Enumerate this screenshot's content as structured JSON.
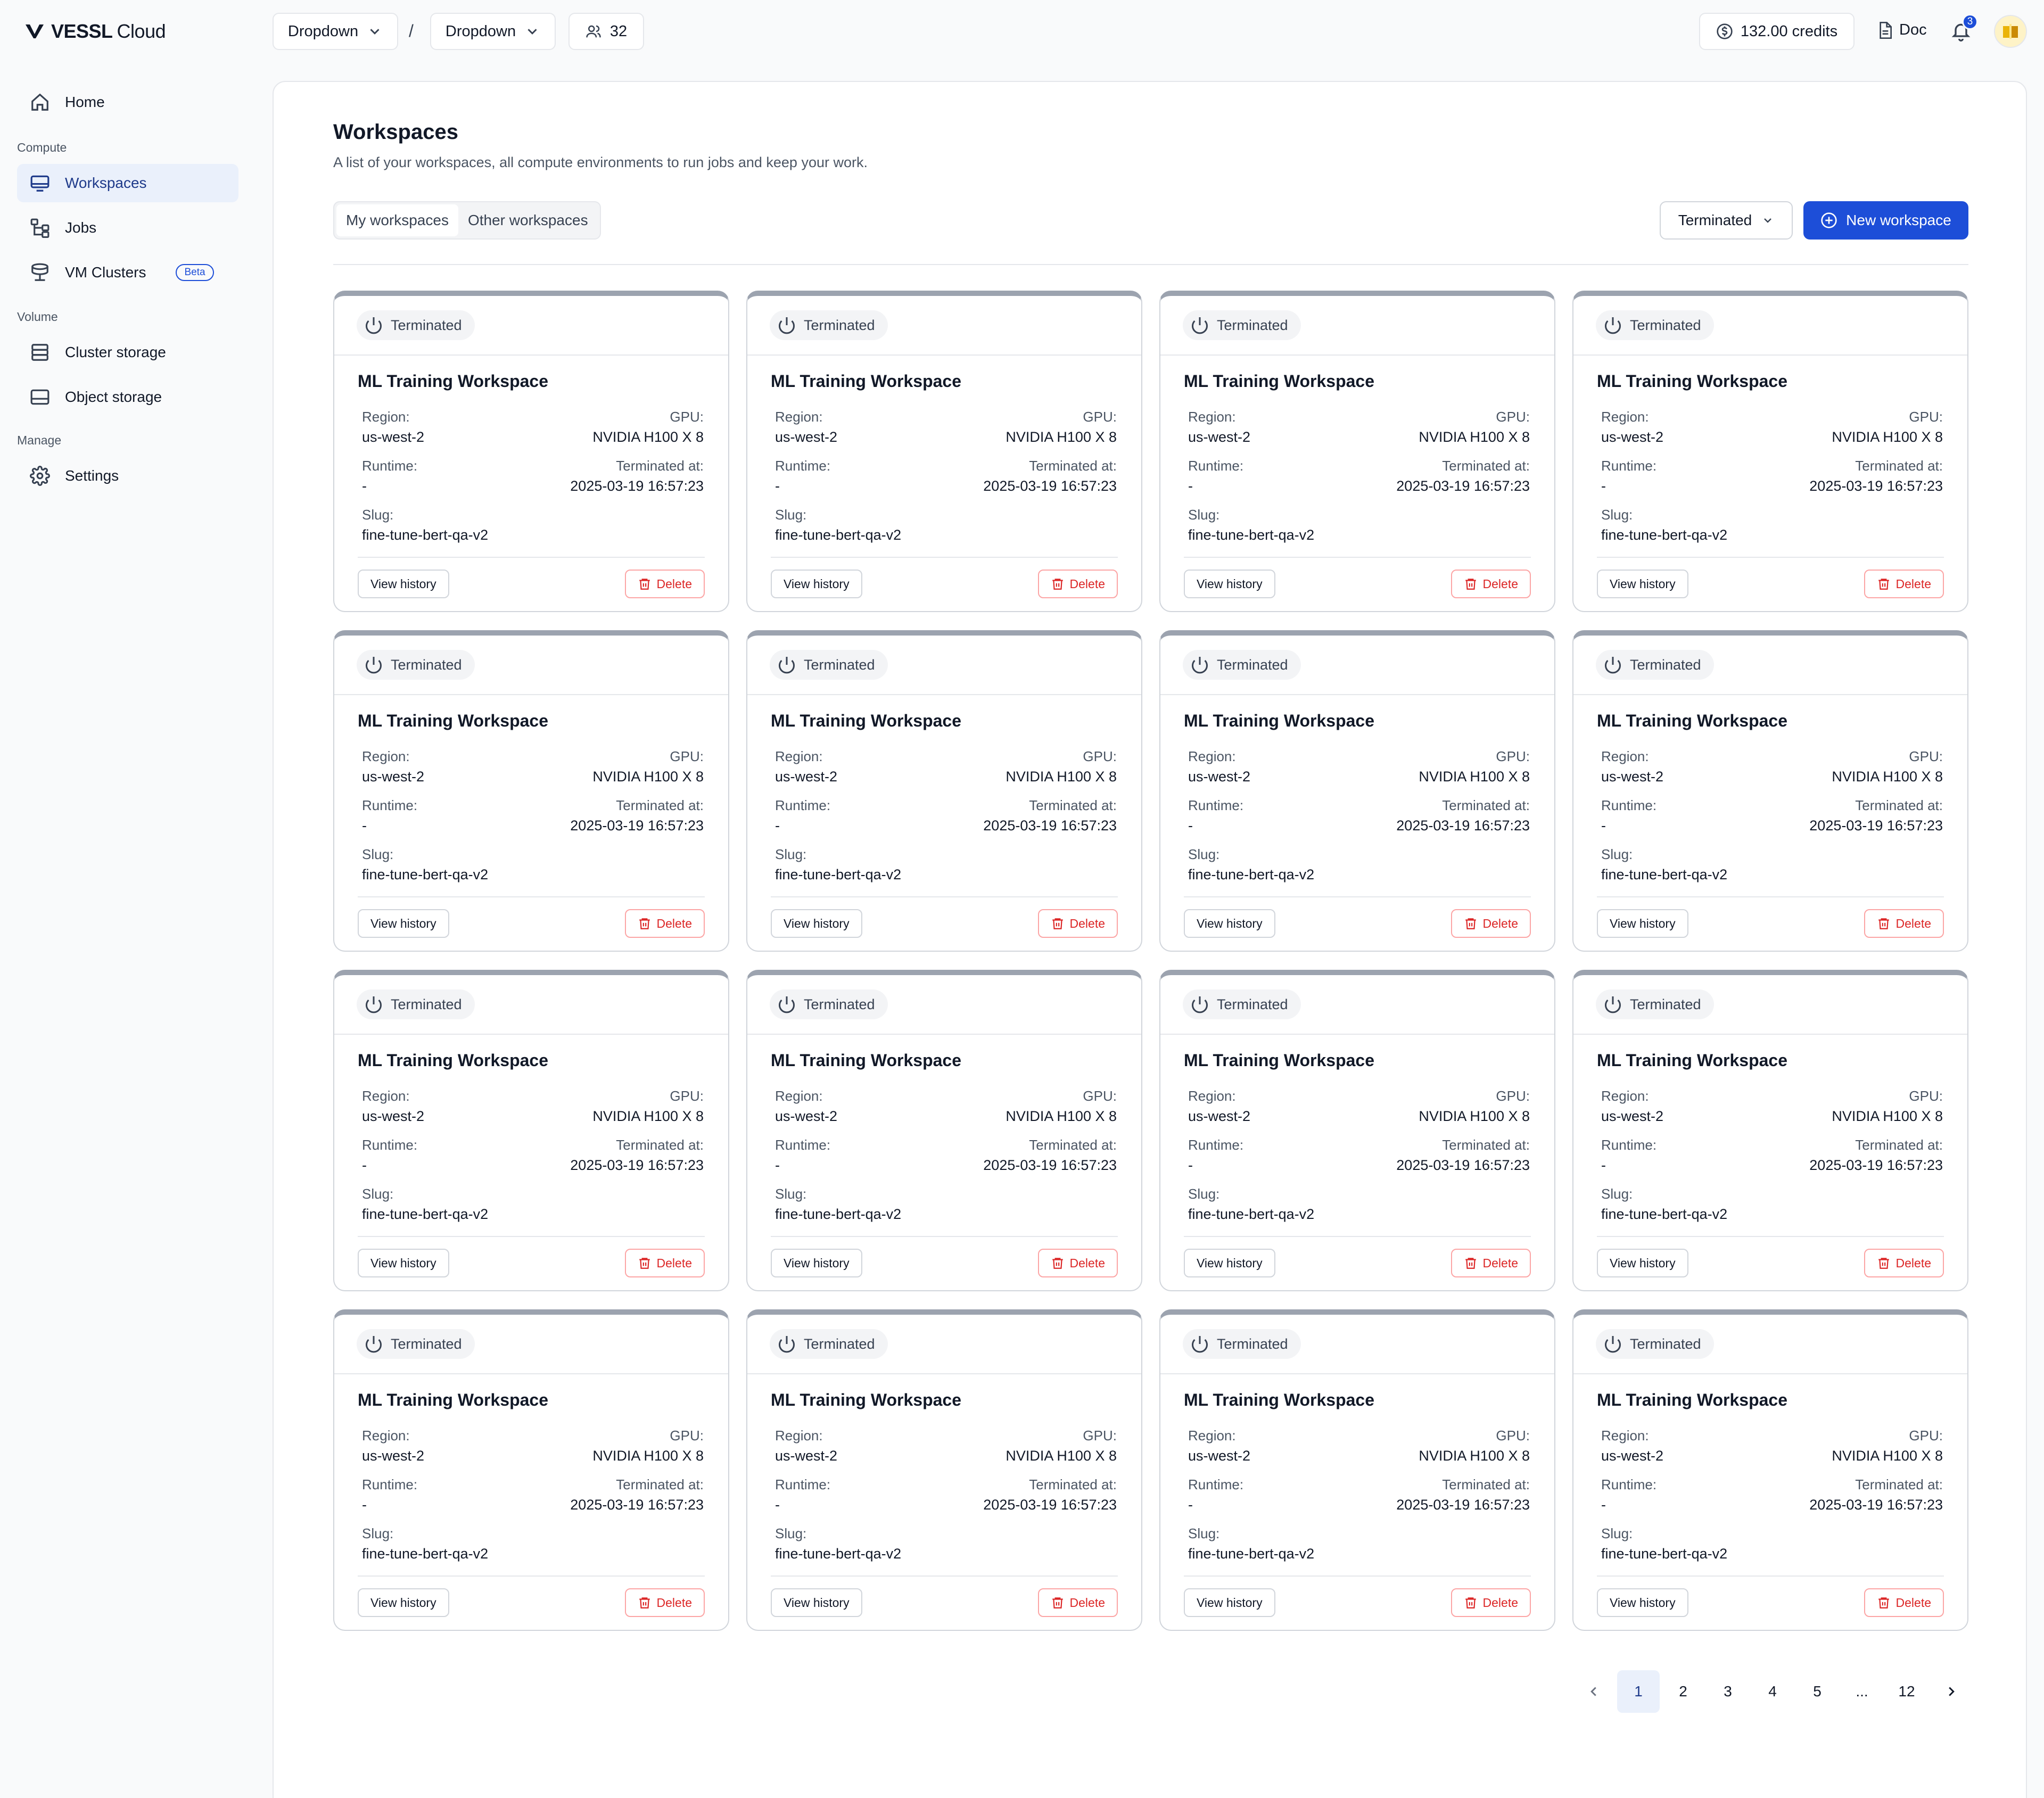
{
  "header": {
    "logo": {
      "brand": "VESSL",
      "product": "Cloud"
    },
    "org_dropdown": "Dropdown",
    "project_dropdown": "Dropdown",
    "breadcrumb_separator": "/",
    "members_count": "32",
    "credits": "132.00 credits",
    "doc_label": "Doc",
    "notification_count": "3"
  },
  "sidebar": {
    "home": "Home",
    "sections": {
      "compute": "Compute",
      "volume": "Volume",
      "manage": "Manage"
    },
    "items": {
      "workspaces": "Workspaces",
      "jobs": "Jobs",
      "vm_clusters": "VM Clusters",
      "vm_clusters_badge": "Beta",
      "cluster_storage": "Cluster storage",
      "object_storage": "Object storage",
      "settings": "Settings"
    }
  },
  "main": {
    "title": "Workspaces",
    "subtitle": "A list of your workspaces, all compute environments to run jobs and keep your work.",
    "tabs": [
      "My workspaces",
      "Other workspaces"
    ],
    "filter_value": "Terminated",
    "new_button": "New workspace",
    "card_labels": {
      "region": "Region:",
      "gpu": "GPU:",
      "runtime": "Runtime:",
      "terminated_at": "Terminated at:",
      "slug": "Slug:",
      "view_history": "View history",
      "delete": "Delete"
    },
    "workspaces": [
      {
        "status": "Terminated",
        "name": "ML Training Workspace",
        "region": "us-west-2",
        "gpu": "NVIDIA H100 X 8",
        "runtime": "-",
        "terminated_at": "2025-03-19 16:57:23",
        "slug": "fine-tune-bert-qa-v2"
      },
      {
        "status": "Terminated",
        "name": "ML Training Workspace",
        "region": "us-west-2",
        "gpu": "NVIDIA H100 X 8",
        "runtime": "-",
        "terminated_at": "2025-03-19 16:57:23",
        "slug": "fine-tune-bert-qa-v2"
      },
      {
        "status": "Terminated",
        "name": "ML Training Workspace",
        "region": "us-west-2",
        "gpu": "NVIDIA H100 X 8",
        "runtime": "-",
        "terminated_at": "2025-03-19 16:57:23",
        "slug": "fine-tune-bert-qa-v2"
      },
      {
        "status": "Terminated",
        "name": "ML Training Workspace",
        "region": "us-west-2",
        "gpu": "NVIDIA H100 X 8",
        "runtime": "-",
        "terminated_at": "2025-03-19 16:57:23",
        "slug": "fine-tune-bert-qa-v2"
      },
      {
        "status": "Terminated",
        "name": "ML Training Workspace",
        "region": "us-west-2",
        "gpu": "NVIDIA H100 X 8",
        "runtime": "-",
        "terminated_at": "2025-03-19 16:57:23",
        "slug": "fine-tune-bert-qa-v2"
      },
      {
        "status": "Terminated",
        "name": "ML Training Workspace",
        "region": "us-west-2",
        "gpu": "NVIDIA H100 X 8",
        "runtime": "-",
        "terminated_at": "2025-03-19 16:57:23",
        "slug": "fine-tune-bert-qa-v2"
      },
      {
        "status": "Terminated",
        "name": "ML Training Workspace",
        "region": "us-west-2",
        "gpu": "NVIDIA H100 X 8",
        "runtime": "-",
        "terminated_at": "2025-03-19 16:57:23",
        "slug": "fine-tune-bert-qa-v2"
      },
      {
        "status": "Terminated",
        "name": "ML Training Workspace",
        "region": "us-west-2",
        "gpu": "NVIDIA H100 X 8",
        "runtime": "-",
        "terminated_at": "2025-03-19 16:57:23",
        "slug": "fine-tune-bert-qa-v2"
      },
      {
        "status": "Terminated",
        "name": "ML Training Workspace",
        "region": "us-west-2",
        "gpu": "NVIDIA H100 X 8",
        "runtime": "-",
        "terminated_at": "2025-03-19 16:57:23",
        "slug": "fine-tune-bert-qa-v2"
      },
      {
        "status": "Terminated",
        "name": "ML Training Workspace",
        "region": "us-west-2",
        "gpu": "NVIDIA H100 X 8",
        "runtime": "-",
        "terminated_at": "2025-03-19 16:57:23",
        "slug": "fine-tune-bert-qa-v2"
      },
      {
        "status": "Terminated",
        "name": "ML Training Workspace",
        "region": "us-west-2",
        "gpu": "NVIDIA H100 X 8",
        "runtime": "-",
        "terminated_at": "2025-03-19 16:57:23",
        "slug": "fine-tune-bert-qa-v2"
      },
      {
        "status": "Terminated",
        "name": "ML Training Workspace",
        "region": "us-west-2",
        "gpu": "NVIDIA H100 X 8",
        "runtime": "-",
        "terminated_at": "2025-03-19 16:57:23",
        "slug": "fine-tune-bert-qa-v2"
      },
      {
        "status": "Terminated",
        "name": "ML Training Workspace",
        "region": "us-west-2",
        "gpu": "NVIDIA H100 X 8",
        "runtime": "-",
        "terminated_at": "2025-03-19 16:57:23",
        "slug": "fine-tune-bert-qa-v2"
      },
      {
        "status": "Terminated",
        "name": "ML Training Workspace",
        "region": "us-west-2",
        "gpu": "NVIDIA H100 X 8",
        "runtime": "-",
        "terminated_at": "2025-03-19 16:57:23",
        "slug": "fine-tune-bert-qa-v2"
      },
      {
        "status": "Terminated",
        "name": "ML Training Workspace",
        "region": "us-west-2",
        "gpu": "NVIDIA H100 X 8",
        "runtime": "-",
        "terminated_at": "2025-03-19 16:57:23",
        "slug": "fine-tune-bert-qa-v2"
      },
      {
        "status": "Terminated",
        "name": "ML Training Workspace",
        "region": "us-west-2",
        "gpu": "NVIDIA H100 X 8",
        "runtime": "-",
        "terminated_at": "2025-03-19 16:57:23",
        "slug": "fine-tune-bert-qa-v2"
      }
    ],
    "pagination": {
      "pages": [
        "1",
        "2",
        "3",
        "4",
        "5",
        "...",
        "12"
      ],
      "current": "1"
    }
  },
  "colors": {
    "primary": "#1d4ed8",
    "active_nav_bg": "#eaf0fb",
    "danger": "#dc2626",
    "card_top_bar": "#9ca3af"
  }
}
